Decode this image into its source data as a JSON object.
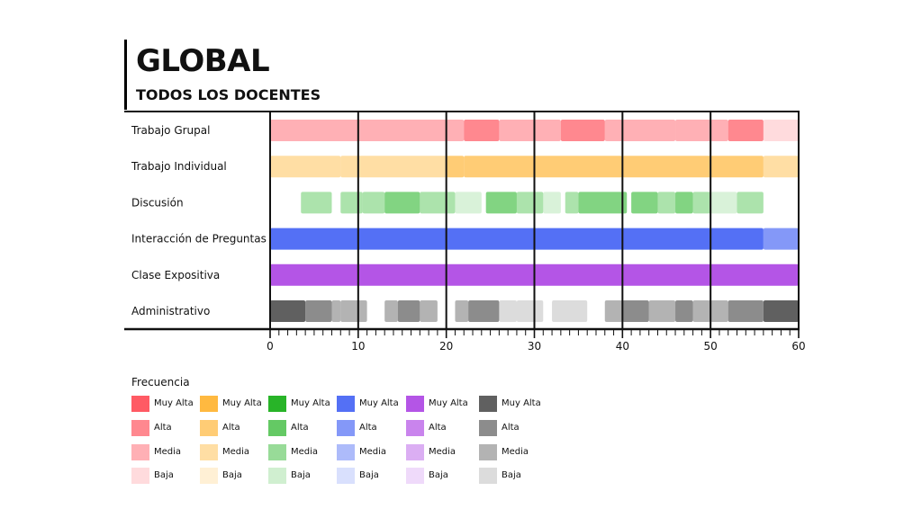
{
  "header": {
    "title": "GLOBAL",
    "subtitle": "TODOS LOS DOCENTES"
  },
  "chart_data": {
    "type": "bar",
    "xlim": [
      0,
      60
    ],
    "major_ticks": [
      0,
      10,
      20,
      30,
      40,
      50,
      60
    ],
    "minor_tick_step": 1,
    "rows": [
      {
        "label": "Trabajo Grupal",
        "color": "#ff5a64",
        "segments": [
          [
            0,
            20,
            "media"
          ],
          [
            20,
            22,
            "media"
          ],
          [
            22,
            26,
            "alta"
          ],
          [
            26,
            30,
            "media"
          ],
          [
            30,
            33,
            "media"
          ],
          [
            33,
            38,
            "alta"
          ],
          [
            38,
            40,
            "media"
          ],
          [
            40,
            46,
            "media"
          ],
          [
            46,
            50,
            "media"
          ],
          [
            50,
            52,
            "media"
          ],
          [
            52,
            56,
            "alta"
          ],
          [
            56,
            60,
            "baja"
          ]
        ]
      },
      {
        "label": "Trabajo Individual",
        "color": "#ffb940",
        "segments": [
          [
            0,
            8,
            "media"
          ],
          [
            8,
            20,
            "media"
          ],
          [
            20,
            22,
            "alta"
          ],
          [
            22,
            40,
            "alta"
          ],
          [
            40,
            56,
            "alta"
          ],
          [
            56,
            60,
            "media"
          ]
        ]
      },
      {
        "label": "Discusión",
        "color": "#52c452",
        "segments": [
          [
            3.5,
            7,
            "media"
          ],
          [
            8,
            10.5,
            "media"
          ],
          [
            10.5,
            13,
            "media"
          ],
          [
            13,
            17,
            "alta"
          ],
          [
            17,
            21,
            "media"
          ],
          [
            21,
            24,
            "baja"
          ],
          [
            24.5,
            28,
            "alta"
          ],
          [
            28,
            31,
            "media"
          ],
          [
            31,
            33,
            "baja"
          ],
          [
            33.5,
            35,
            "media"
          ],
          [
            35,
            40.5,
            "alta"
          ],
          [
            41,
            44,
            "alta"
          ],
          [
            44,
            46,
            "media"
          ],
          [
            46,
            48,
            "alta"
          ],
          [
            48,
            50,
            "media"
          ],
          [
            50,
            53,
            "baja"
          ],
          [
            53,
            56,
            "media"
          ]
        ]
      },
      {
        "label": "Interacción de Preguntas",
        "color": "#5470f5",
        "segments": [
          [
            0,
            56,
            "muy_alta"
          ],
          [
            56,
            60,
            "alta"
          ]
        ]
      },
      {
        "label": "Clase Expositiva",
        "color": "#b455e6",
        "segments": [
          [
            0,
            60,
            "muy_alta"
          ]
        ]
      },
      {
        "label": "Administrativo",
        "color": "#606060",
        "segments": [
          [
            0,
            4,
            "muy_alta"
          ],
          [
            4,
            7,
            "alta"
          ],
          [
            7,
            8,
            "media"
          ],
          [
            8,
            11,
            "media"
          ],
          [
            13,
            14.5,
            "media"
          ],
          [
            14.5,
            17,
            "alta"
          ],
          [
            17,
            19,
            "media"
          ],
          [
            21,
            22.5,
            "media"
          ],
          [
            22.5,
            26,
            "alta"
          ],
          [
            26,
            28,
            "baja"
          ],
          [
            28,
            31,
            "baja"
          ],
          [
            32,
            36,
            "baja"
          ],
          [
            38,
            40,
            "media"
          ],
          [
            40,
            43,
            "alta"
          ],
          [
            43,
            46,
            "media"
          ],
          [
            46,
            48,
            "alta"
          ],
          [
            48,
            50,
            "media"
          ],
          [
            50,
            52,
            "media"
          ],
          [
            52,
            56,
            "alta"
          ],
          [
            56,
            60,
            "muy_alta"
          ]
        ]
      }
    ]
  },
  "legend": {
    "title": "Frecuencia",
    "levels": [
      "Muy Alta",
      "Alta",
      "Media",
      "Baja"
    ],
    "colors": [
      "#ff5a64",
      "#ffb940",
      "#28b428",
      "#5470f5",
      "#b455e6",
      "#606060"
    ]
  }
}
